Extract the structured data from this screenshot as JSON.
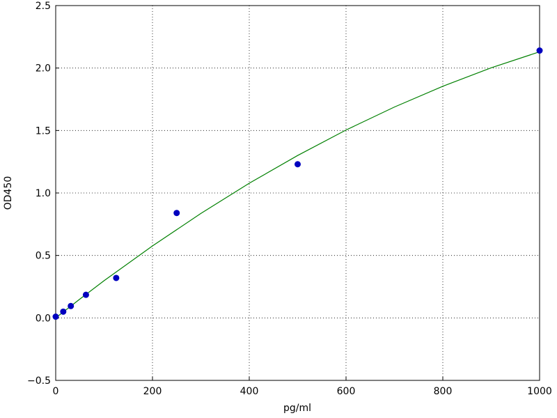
{
  "chart_data": {
    "type": "scatter",
    "x_label": "pg/ml",
    "y_label": "OD450",
    "xlim": [
      0,
      1000
    ],
    "xticks": [
      0,
      200,
      400,
      600,
      800,
      1000
    ],
    "ylim": [
      -0.5,
      2.5
    ],
    "yticks": [
      {
        "value": -0.5,
        "label": "−0.5"
      },
      {
        "value": 0,
        "label": "0.0"
      },
      0.5,
      {
        "value": 1,
        "label": "1.0"
      },
      1.5,
      {
        "value": 2,
        "label": "2.0"
      },
      2.5
    ],
    "grid": true,
    "series": [
      {
        "mode": "markers",
        "color": "#0000bf",
        "x": [
          0,
          15.6,
          31.25,
          62.5,
          125,
          250,
          500,
          1000
        ],
        "values": [
          0.01,
          0.05,
          0.095,
          0.185,
          0.32,
          0.84,
          1.23,
          2.14
        ]
      },
      {
        "mode": "line",
        "color": "#008000",
        "x": [
          0,
          50,
          100,
          200,
          300,
          400,
          500,
          600,
          700,
          800,
          900,
          1000
        ],
        "values": [
          0,
          0.151,
          0.298,
          0.576,
          0.836,
          1.078,
          1.3,
          1.504,
          1.688,
          1.854,
          2.002,
          2.13
        ]
      }
    ]
  }
}
